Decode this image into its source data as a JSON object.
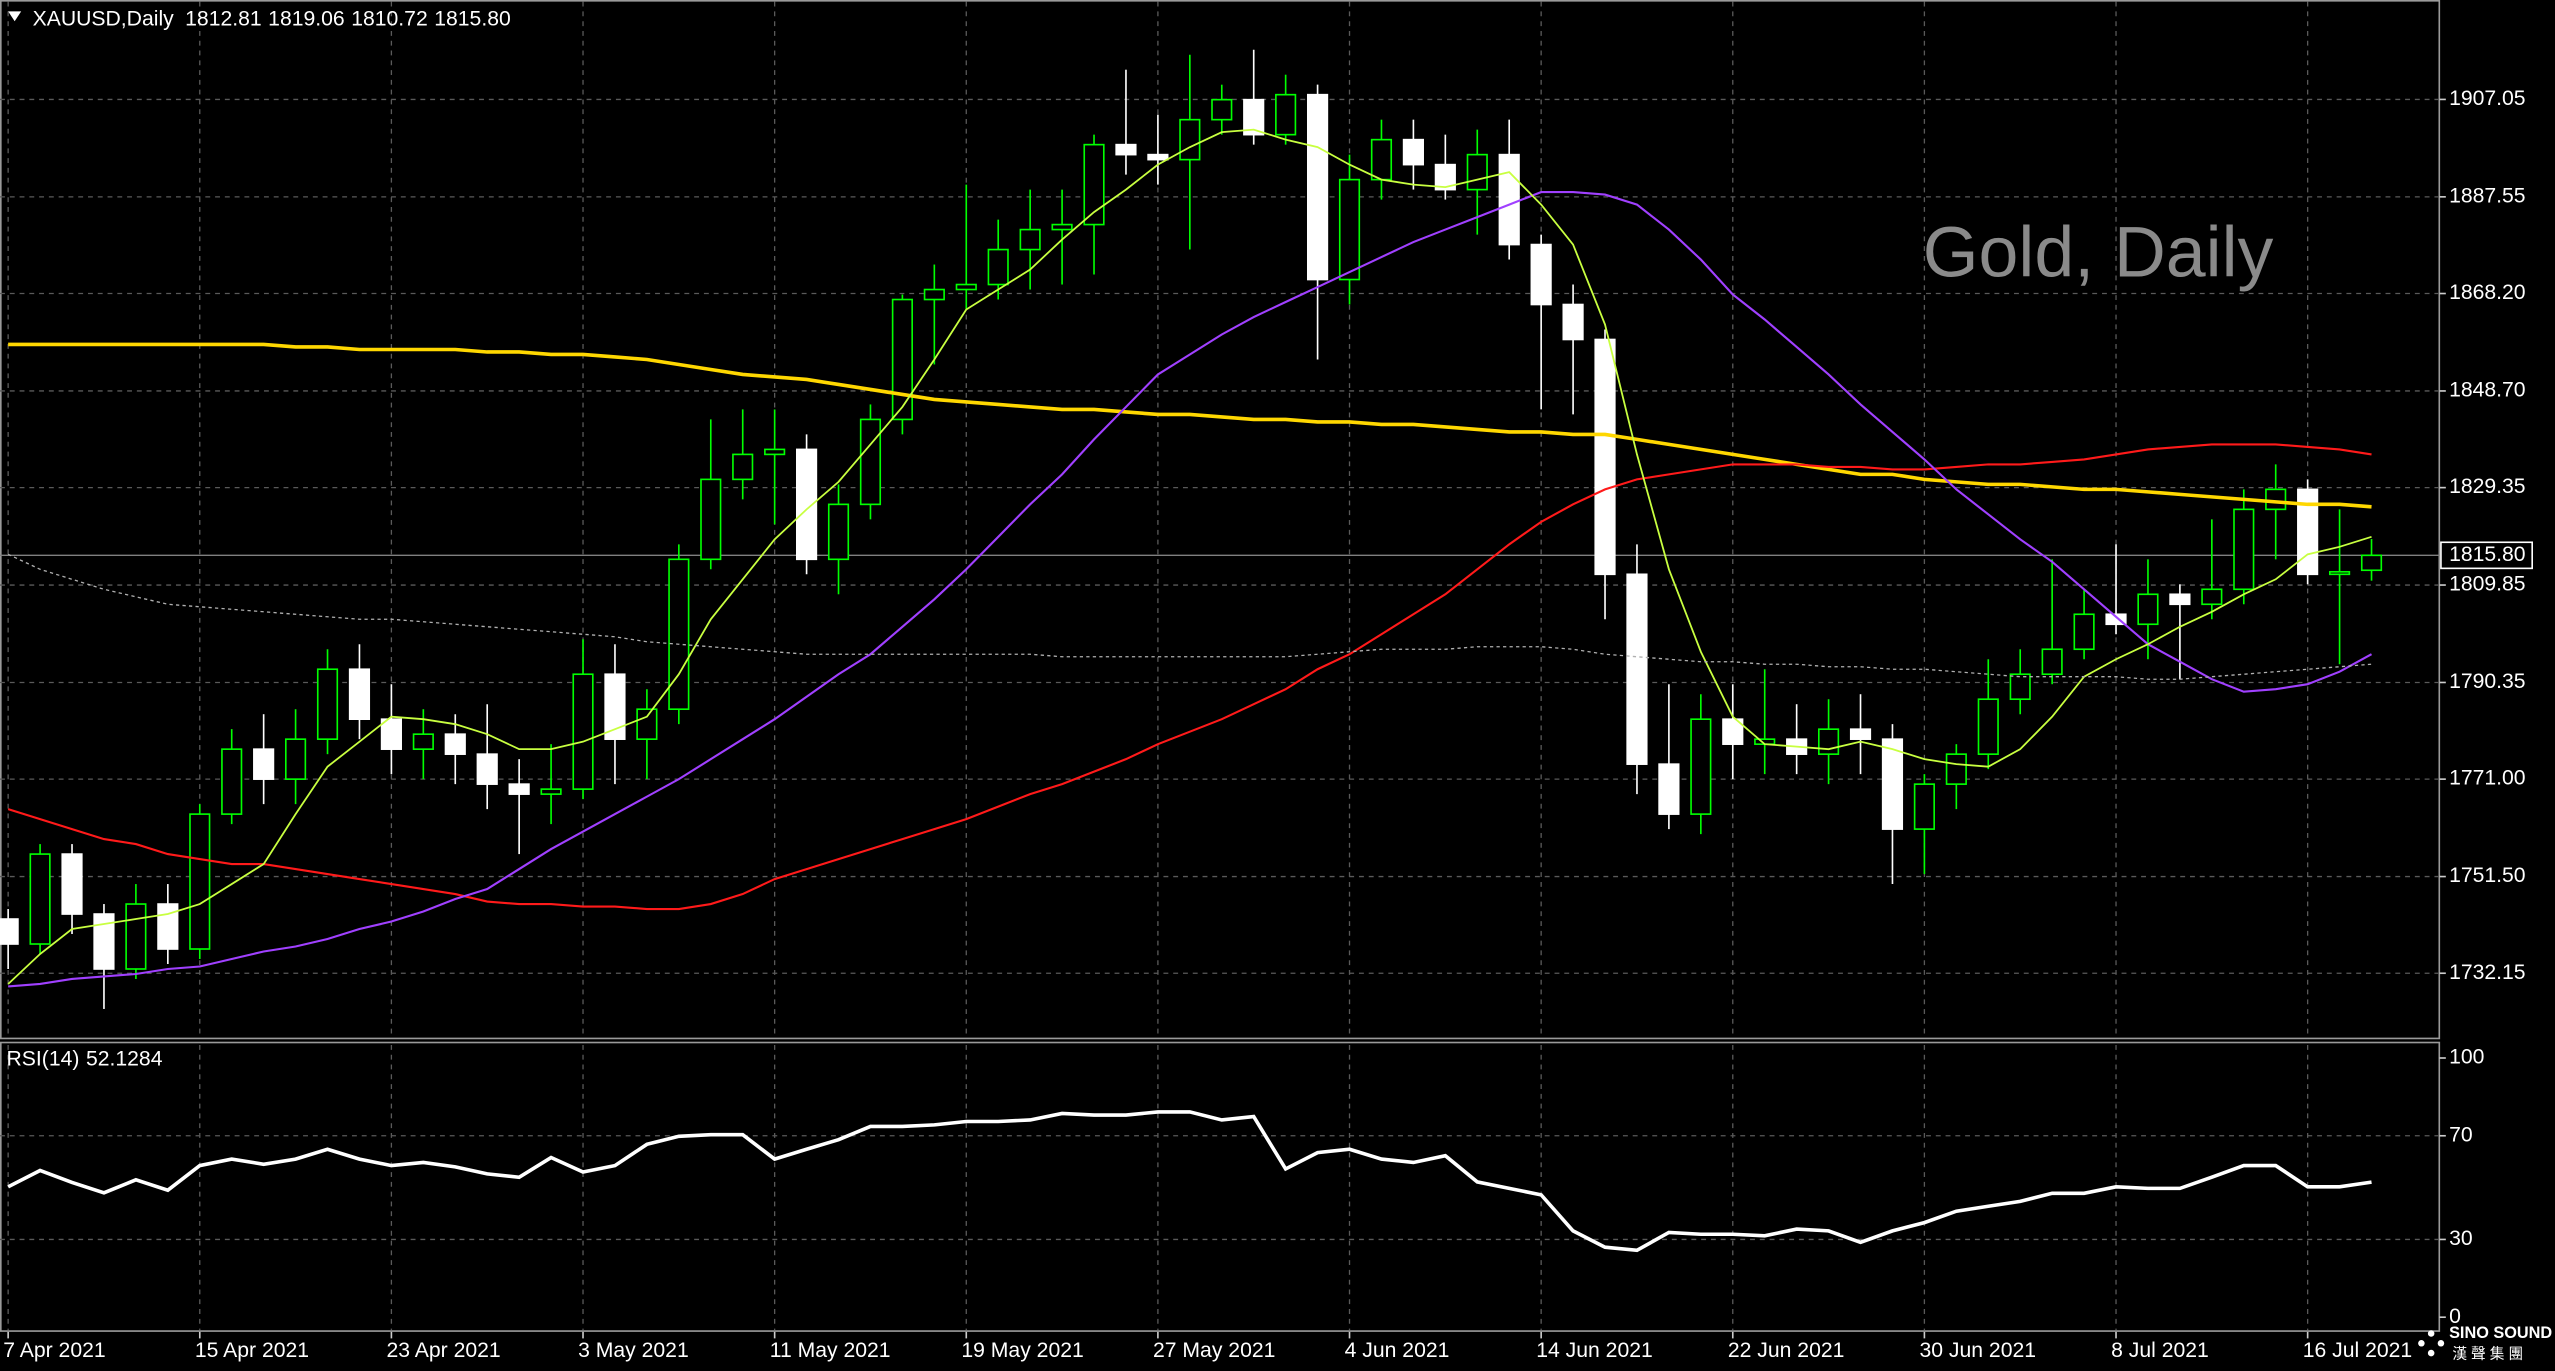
{
  "chart_data": {
    "type": "candlestick",
    "title": "XAUUSD,Daily",
    "quote_labels": [
      "1812.81",
      "1819.06",
      "1810.72",
      "1815.80"
    ],
    "watermark": "Gold, Daily",
    "categories": [
      "7 Apr 2021",
      null,
      null,
      null,
      null,
      null,
      "15 Apr 2021",
      null,
      null,
      null,
      null,
      null,
      "23 Apr 2021",
      null,
      null,
      null,
      null,
      null,
      "3 May 2021",
      null,
      null,
      null,
      null,
      null,
      "11 May 2021",
      null,
      null,
      null,
      null,
      null,
      "19 May 2021",
      null,
      null,
      null,
      null,
      null,
      "27 May 2021",
      null,
      null,
      null,
      null,
      null,
      "4 Jun 2021",
      null,
      null,
      null,
      null,
      null,
      "14 Jun 2021",
      null,
      null,
      null,
      null,
      null,
      "22 Jun 2021",
      null,
      null,
      null,
      null,
      null,
      "30 Jun 2021",
      null,
      null,
      null,
      null,
      null,
      "8 Jul 2021",
      null,
      null,
      null,
      null,
      null,
      "16 Jul 2021",
      null,
      null
    ],
    "open": [
      1743,
      1738,
      1756,
      1744,
      1733,
      1746,
      1737,
      1764,
      1777,
      1771,
      1779,
      1793,
      1783,
      1777,
      1780,
      1776,
      1770,
      1768,
      1769,
      1792,
      1779,
      1785,
      1815,
      1831,
      1836,
      1837,
      1815,
      1826,
      1843,
      1867,
      1869,
      1870,
      1877,
      1881,
      1882,
      1898,
      1896,
      1895,
      1903,
      1907,
      1900,
      1908,
      1871,
      1891,
      1899,
      1894,
      1889,
      1896,
      1878,
      1866,
      1859,
      1812,
      1774,
      1764,
      1783,
      1778,
      1779,
      1776,
      1781,
      1779,
      1761,
      1770,
      1776,
      1787,
      1792,
      1797,
      1804,
      1802,
      1808,
      1806,
      1809,
      1825,
      1829,
      1812,
      1812.81
    ],
    "high": [
      1745,
      1758,
      1758,
      1746,
      1750,
      1750,
      1766,
      1781,
      1784,
      1785,
      1797,
      1798,
      1790,
      1785,
      1784,
      1786,
      1775,
      1778,
      1799,
      1798,
      1789,
      1818,
      1843,
      1845,
      1845,
      1840,
      1830,
      1846,
      1868,
      1874,
      1890,
      1883,
      1889,
      1889,
      1900,
      1913,
      1904,
      1916,
      1910,
      1917,
      1912,
      1910,
      1896,
      1903,
      1903,
      1900,
      1901,
      1903,
      1880,
      1870,
      1861,
      1818,
      1790,
      1788,
      1790,
      1793,
      1786,
      1787,
      1788,
      1782,
      1772,
      1778,
      1795,
      1797,
      1815,
      1809,
      1818,
      1815,
      1810,
      1823,
      1829,
      1834,
      1831,
      1825,
      1819.06
    ],
    "low": [
      1733,
      1736,
      1740,
      1725,
      1731,
      1734,
      1735,
      1762,
      1766,
      1766,
      1776,
      1779,
      1772,
      1771,
      1770,
      1765,
      1756,
      1762,
      1767,
      1770,
      1771,
      1782,
      1813,
      1827,
      1822,
      1812,
      1808,
      1823,
      1840,
      1854,
      1865,
      1867,
      1869,
      1870,
      1872,
      1892,
      1890,
      1877,
      1900,
      1898,
      1898,
      1855,
      1866,
      1887,
      1889,
      1887,
      1880,
      1875,
      1845,
      1844,
      1803,
      1768,
      1761,
      1760,
      1771,
      1772,
      1772,
      1770,
      1772,
      1750,
      1752,
      1765,
      1773,
      1784,
      1790,
      1795,
      1800,
      1795,
      1791,
      1803,
      1806,
      1815,
      1810,
      1794,
      1810.72
    ],
    "close": [
      1738,
      1756,
      1744,
      1733,
      1746,
      1737,
      1764,
      1777,
      1771,
      1779,
      1793,
      1783,
      1777,
      1780,
      1776,
      1770,
      1768,
      1769,
      1792,
      1779,
      1785,
      1815,
      1831,
      1836,
      1837,
      1815,
      1826,
      1843,
      1867,
      1869,
      1870,
      1877,
      1881,
      1882,
      1898,
      1896,
      1895,
      1903,
      1907,
      1900,
      1908,
      1871,
      1891,
      1899,
      1894,
      1889,
      1896,
      1878,
      1866,
      1859,
      1812,
      1774,
      1764,
      1783,
      1778,
      1779,
      1776,
      1781,
      1779,
      1761,
      1770,
      1776,
      1787,
      1792,
      1797,
      1804,
      1802,
      1808,
      1806,
      1809,
      1825,
      1829,
      1812,
      1812.5,
      1815.8
    ],
    "candle_colors": {
      "up": "#00ff00",
      "down": "#ffffff",
      "up_fill": "#000000"
    },
    "last_price_line_color": "#808080",
    "series": [
      {
        "color": "#ffd700",
        "width": 2.2,
        "values": [
          1858,
          1858,
          1858,
          1858,
          1858,
          1858,
          1858,
          1858,
          1858,
          1857.5,
          1857.5,
          1857,
          1857,
          1857,
          1857,
          1856.5,
          1856.5,
          1856,
          1856,
          1855.5,
          1855,
          1854,
          1853,
          1852,
          1851.5,
          1851,
          1850,
          1849,
          1848,
          1847,
          1846.5,
          1846,
          1845.5,
          1845,
          1845,
          1844.5,
          1844,
          1844,
          1843.5,
          1843,
          1843,
          1842.5,
          1842.5,
          1842,
          1842,
          1841.5,
          1841,
          1840.5,
          1840.5,
          1840,
          1840,
          1839,
          1838,
          1837,
          1836,
          1835,
          1834,
          1833,
          1832,
          1832,
          1831,
          1830.5,
          1830,
          1830,
          1829.5,
          1829,
          1829,
          1828.5,
          1828,
          1827.5,
          1827,
          1826.5,
          1826,
          1826,
          1825.5
        ]
      },
      {
        "color": "#ff1a1a",
        "width": 1.3,
        "values": [
          1765,
          1763,
          1761,
          1759,
          1758,
          1756,
          1755,
          1754,
          1754,
          1753,
          1752,
          1751,
          1750,
          1749,
          1748,
          1746.5,
          1746,
          1746,
          1745.5,
          1745.5,
          1745,
          1745,
          1746,
          1748,
          1751,
          1753,
          1755,
          1757,
          1759,
          1761,
          1763,
          1765.5,
          1768,
          1770,
          1772.5,
          1775,
          1778,
          1780.5,
          1783,
          1786,
          1789,
          1793,
          1796,
          1800,
          1804,
          1808,
          1813,
          1818,
          1822.5,
          1826,
          1829,
          1831,
          1832,
          1833,
          1834,
          1834,
          1834,
          1833.5,
          1833.5,
          1833,
          1833,
          1833.5,
          1834,
          1834,
          1834.5,
          1835,
          1836,
          1837,
          1837.5,
          1838,
          1838,
          1838,
          1837.5,
          1837,
          1836
        ]
      },
      {
        "color": "#a040ff",
        "width": 1.3,
        "values": [
          1729.5,
          1730,
          1731,
          1731.5,
          1732,
          1733,
          1733.5,
          1735,
          1736.5,
          1737.5,
          1739,
          1741,
          1742.5,
          1744.5,
          1747,
          1749,
          1753,
          1757,
          1760.5,
          1764,
          1767.5,
          1771,
          1775,
          1779,
          1783,
          1787.5,
          1792,
          1796,
          1801.5,
          1807,
          1813,
          1819.5,
          1826,
          1832,
          1839,
          1845.5,
          1852,
          1856,
          1860,
          1863.5,
          1866.5,
          1869.5,
          1872.5,
          1875.5,
          1878.5,
          1881,
          1883.5,
          1886,
          1888.5,
          1888.5,
          1888,
          1886,
          1881,
          1875,
          1868,
          1863,
          1857.5,
          1852,
          1846,
          1840.5,
          1835,
          1829,
          1824,
          1819,
          1814.5,
          1809,
          1803.5,
          1798,
          1794.5,
          1791,
          1788.5,
          1789,
          1790,
          1792.5,
          1796
        ]
      },
      {
        "color": "#c8ff40",
        "width": 1.1,
        "values": [
          1730,
          1736,
          1741,
          1742,
          1743,
          1744,
          1746,
          1750,
          1754,
          1764,
          1773.5,
          1778.5,
          1783.5,
          1783,
          1782,
          1780,
          1777,
          1777,
          1778.5,
          1781,
          1783.5,
          1792,
          1803,
          1811,
          1819,
          1825,
          1830.5,
          1838,
          1845.5,
          1855,
          1865,
          1869,
          1873,
          1879,
          1884.5,
          1889,
          1894,
          1897.5,
          1900.5,
          1901,
          1899,
          1897.5,
          1894,
          1891,
          1890,
          1889.5,
          1891,
          1892.5,
          1886,
          1878,
          1862,
          1836,
          1813,
          1796.5,
          1783.5,
          1778,
          1777.5,
          1777,
          1778.5,
          1777,
          1775,
          1774,
          1773.5,
          1777,
          1783.5,
          1791.5,
          1795,
          1798,
          1801.5,
          1804.5,
          1808,
          1811,
          1816,
          1817.5,
          1819.5
        ]
      },
      {
        "color": "#b0b0b0",
        "width": 0.8,
        "dashed": true,
        "values": [
          1816,
          1813,
          1811,
          1809,
          1807.5,
          1806,
          1805.5,
          1805,
          1804.5,
          1804,
          1803.5,
          1803,
          1803,
          1802.5,
          1802,
          1801.5,
          1801,
          1800.5,
          1800,
          1799.5,
          1798.5,
          1798,
          1797.5,
          1797,
          1796.5,
          1796,
          1796,
          1796,
          1796,
          1796,
          1796,
          1796,
          1796,
          1795.5,
          1795.5,
          1795.5,
          1795.5,
          1795.5,
          1795.5,
          1795.5,
          1795.5,
          1796,
          1796.5,
          1797,
          1797,
          1797,
          1797.5,
          1797.5,
          1797.5,
          1797,
          1796,
          1795.5,
          1795,
          1794.5,
          1794.5,
          1794,
          1794,
          1793.5,
          1793.5,
          1793,
          1793,
          1792.5,
          1792,
          1791.5,
          1791.5,
          1791.5,
          1791.5,
          1791,
          1791,
          1791.5,
          1792,
          1792.5,
          1793,
          1793.5,
          1794
        ]
      }
    ],
    "ylim": [
      1719.1,
      1926.95
    ],
    "yticks": [
      1907.05,
      1887.55,
      {
        "value": 1868.2,
        "label": "1868.20"
      },
      {
        "value": 1848.7,
        "label": "1848.70"
      },
      1829.35,
      1809.85,
      1790.35,
      {
        "value": 1771,
        "label": "1771.00"
      },
      {
        "value": 1751.5,
        "label": "1751.50"
      },
      1732.15
    ],
    "grid": true,
    "rsi": {
      "label": "RSI(14)",
      "color": "#ffffff",
      "values": [
        50.3,
        56.6,
        52,
        48,
        53,
        49,
        58.5,
        61,
        59,
        61,
        64.8,
        61,
        58.5,
        59.7,
        58,
        55.3,
        54,
        61.6,
        56,
        58.5,
        66.7,
        69.8,
        70.4,
        70.4,
        61,
        64.8,
        68.5,
        73.6,
        73.6,
        74.2,
        75.5,
        75.5,
        76.1,
        78.6,
        78,
        78,
        79.2,
        79.2,
        76.1,
        77.4,
        57.2,
        63.5,
        64.8,
        61,
        59.7,
        62.3,
        52.2,
        49.7,
        47.2,
        33.3,
        27,
        25.8,
        32.7,
        32,
        32,
        31.4,
        34,
        33.3,
        28.9,
        33.3,
        36.5,
        40.9,
        42.8,
        44.7,
        47.8,
        47.8,
        50.3,
        49.7,
        49.7,
        54,
        58.5,
        58.5,
        50.3,
        50.3,
        52.1284
      ],
      "ylim": [
        0,
        100
      ],
      "yticks": [
        100,
        70,
        30,
        0
      ]
    }
  },
  "logo": {
    "name": "SINO SOUND",
    "subtitle": "漢 聲 集 團"
  }
}
